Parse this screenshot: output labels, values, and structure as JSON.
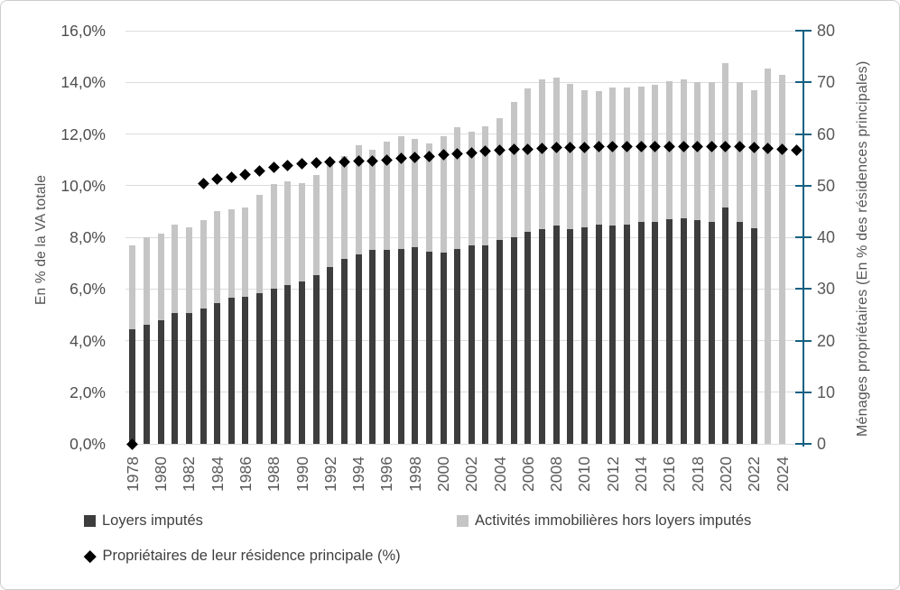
{
  "chart_data": {
    "type": "bar+scatter",
    "stacked": true,
    "categories": [
      1978,
      1979,
      1980,
      1981,
      1982,
      1983,
      1984,
      1985,
      1986,
      1987,
      1988,
      1989,
      1990,
      1991,
      1992,
      1993,
      1994,
      1995,
      1996,
      1997,
      1998,
      1999,
      2000,
      2001,
      2002,
      2003,
      2004,
      2005,
      2006,
      2007,
      2008,
      2009,
      2010,
      2011,
      2012,
      2013,
      2014,
      2015,
      2016,
      2017,
      2018,
      2019,
      2020,
      2021,
      2022,
      2023,
      2024,
      2025
    ],
    "series": [
      {
        "name": "Loyers imputés",
        "type": "bar",
        "axis": "left",
        "color": "#3d3d3d",
        "values": [
          4.45,
          4.6,
          4.8,
          5.05,
          5.05,
          5.25,
          5.45,
          5.65,
          5.7,
          5.85,
          6.0,
          6.15,
          6.3,
          6.55,
          6.85,
          7.15,
          7.35,
          7.5,
          7.5,
          7.55,
          7.6,
          7.45,
          7.4,
          7.55,
          7.7,
          7.7,
          7.9,
          8.0,
          8.2,
          8.3,
          8.45,
          8.3,
          8.4,
          8.5,
          8.45,
          8.5,
          8.6,
          8.6,
          8.7,
          8.75,
          8.65,
          8.6,
          9.15,
          8.6,
          8.35,
          null,
          null,
          null
        ]
      },
      {
        "name": "Activités immobilières hors loyers imputés",
        "type": "bar",
        "axis": "left",
        "color": "#c5c5c5",
        "values": [
          3.25,
          3.4,
          3.35,
          3.45,
          3.35,
          3.4,
          3.55,
          3.45,
          3.45,
          3.8,
          4.05,
          4.0,
          3.8,
          3.85,
          4.0,
          4.0,
          4.2,
          3.9,
          4.2,
          4.35,
          4.2,
          4.2,
          4.5,
          4.7,
          4.4,
          4.6,
          4.7,
          5.25,
          5.55,
          5.8,
          5.75,
          5.65,
          5.3,
          5.15,
          5.35,
          5.3,
          5.25,
          5.3,
          5.35,
          5.35,
          5.35,
          5.4,
          5.6,
          5.4,
          5.35,
          14.55,
          14.3,
          null
        ]
      },
      {
        "name": "Propriétaires de leur résidence principale (%)",
        "type": "scatter",
        "axis": "right",
        "color": "#000000",
        "values": [
          0,
          null,
          null,
          null,
          null,
          50.4,
          51.2,
          51.6,
          52.1,
          52.9,
          53.5,
          53.9,
          54.2,
          54.4,
          54.5,
          54.6,
          54.7,
          54.8,
          55.0,
          55.2,
          55.5,
          55.7,
          56.0,
          56.2,
          56.4,
          56.6,
          56.8,
          57.0,
          57.1,
          57.2,
          57.3,
          57.35,
          57.4,
          57.5,
          57.5,
          57.55,
          57.55,
          57.6,
          57.6,
          57.6,
          57.6,
          57.55,
          57.5,
          57.5,
          57.4,
          57.2,
          57.0,
          56.9
        ]
      }
    ],
    "stacked_totals": [
      7.7,
      8.0,
      8.15,
      8.5,
      8.4,
      8.65,
      9.0,
      9.1,
      9.15,
      9.65,
      10.05,
      10.15,
      10.1,
      10.4,
      10.85,
      11.15,
      11.55,
      11.4,
      11.7,
      11.9,
      11.8,
      11.65,
      11.9,
      12.25,
      12.1,
      12.3,
      12.6,
      13.25,
      13.75,
      14.1,
      14.2,
      13.95,
      13.7,
      13.65,
      13.8,
      13.8,
      13.85,
      13.9,
      14.05,
      14.1,
      14.0,
      14.0,
      14.75,
      14.0,
      13.7,
      14.55,
      14.3,
      null
    ],
    "left_axis": {
      "title": "En % de la VA totale",
      "min": 0,
      "max": 16,
      "step": 2,
      "tick_labels": [
        "0,0%",
        "2,0%",
        "4,0%",
        "6,0%",
        "8,0%",
        "10,0%",
        "12,0%",
        "14,0%",
        "16,0%"
      ]
    },
    "right_axis": {
      "title": "Ménages propriétaires (En % des résidences principales)",
      "min": 0,
      "max": 80,
      "step": 10,
      "tick_labels": [
        "0",
        "10",
        "20",
        "30",
        "40",
        "50",
        "60",
        "70",
        "80"
      ],
      "line_color": "#156082"
    },
    "x_axis": {
      "tick_years": [
        1978,
        1980,
        1982,
        1984,
        1986,
        1988,
        1990,
        1992,
        1994,
        1996,
        1998,
        2000,
        2002,
        2004,
        2006,
        2008,
        2010,
        2012,
        2014,
        2016,
        2018,
        2020,
        2022,
        2024
      ]
    },
    "legend": [
      {
        "label": "Loyers imputés",
        "marker": "square",
        "color": "#3d3d3d"
      },
      {
        "label": "Activités immobilières hors loyers imputés",
        "marker": "square",
        "color": "#c5c5c5"
      },
      {
        "label": "Propriétaires de leur résidence principale (%)",
        "marker": "diamond",
        "color": "#000000"
      }
    ],
    "grid": true,
    "legend_position": "bottom"
  }
}
